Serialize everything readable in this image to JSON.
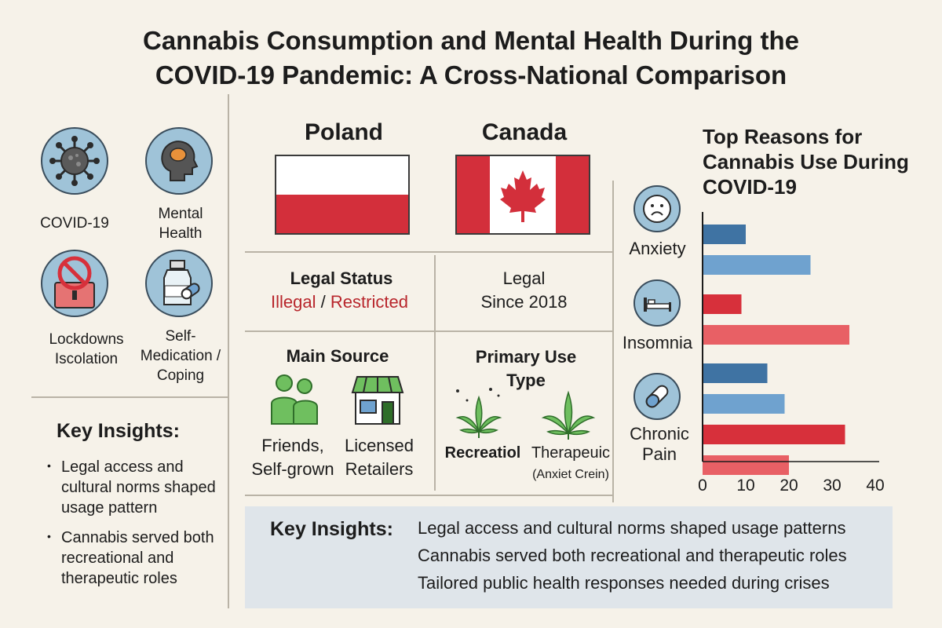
{
  "title": {
    "line1": "Cannabis Consumption and Mental Health During the",
    "line2": "COVID-19 Pandemic: A Cross-National Comparison"
  },
  "themes": [
    {
      "label": "COVID-19",
      "icon": "virus-icon"
    },
    {
      "label": "Mental Health",
      "icon": "head-brain-icon"
    },
    {
      "label": "Lockdowns Iscolation",
      "icon": "lock-prohibited-icon"
    },
    {
      "label": "Self-Medication / Coping",
      "icon": "medicine-bottle-icon"
    }
  ],
  "left_insights": {
    "title": "Key Insights:",
    "items": [
      "Legal access and cultural norms shaped usage pattern",
      "Cannabis served both recreational and therapeutic roles"
    ]
  },
  "countries": {
    "poland": {
      "name": "Poland",
      "flag_colors": [
        "#ffffff",
        "#d32f3b"
      ]
    },
    "canada": {
      "name": "Canada",
      "flag_colors": [
        "#d32f3b",
        "#ffffff"
      ]
    }
  },
  "legal_status": {
    "title": "Legal Status",
    "poland_part1": "Illegal",
    "separator": "/",
    "poland_part2": "Restricted",
    "canada_line1": "Legal",
    "canada_line2": "Since 2018"
  },
  "main_source": {
    "title": "Main Source",
    "poland_line1": "Friends,",
    "poland_line2": "Self-grown",
    "canada_line1": "Licensed",
    "canada_line2": "Retailers"
  },
  "primary_use": {
    "title_line1": "Primary Use",
    "title_line2": "Type",
    "poland": "Recreatiol",
    "canada": "Therapeuic",
    "canada_note": "(Anxiet Crein)"
  },
  "bottom_insights": {
    "title": "Key Insights:",
    "lines": [
      "Legal access and cultural norms shaped usage patterns",
      "Cannabis served both recreational and therapeutic roles",
      "Tailored public health responses needed during crises"
    ]
  },
  "chart_data": {
    "type": "bar",
    "orientation": "horizontal",
    "title": "Top Reasons for Cannabis Use During COVID-19",
    "categories": [
      "Anxiety",
      "Insomnia",
      "Chronic Pain"
    ],
    "category_icons": [
      "sad-face-icon",
      "bed-icon",
      "pill-icon"
    ],
    "xlim": [
      0,
      40
    ],
    "xticks": [
      "0",
      "10",
      "20",
      "30",
      "40"
    ],
    "bars": [
      {
        "category": "Anxiety",
        "color": "#3f73a3",
        "value": 10
      },
      {
        "category": "Anxiety",
        "color": "#6fa2cf",
        "value": 25
      },
      {
        "category": "Insomnia",
        "color": "#d7303b",
        "value": 9
      },
      {
        "category": "Insomnia",
        "color": "#e86065",
        "value": 34
      },
      {
        "category": "Chronic Pain",
        "color": "#3f73a3",
        "value": 15
      },
      {
        "category": "Chronic Pain",
        "color": "#6fa2cf",
        "value": 19
      },
      {
        "category": "Chronic Pain",
        "color": "#d7303b",
        "value": 33
      },
      {
        "category": "Chronic Pain",
        "color": "#e86065",
        "value": 20
      }
    ]
  }
}
